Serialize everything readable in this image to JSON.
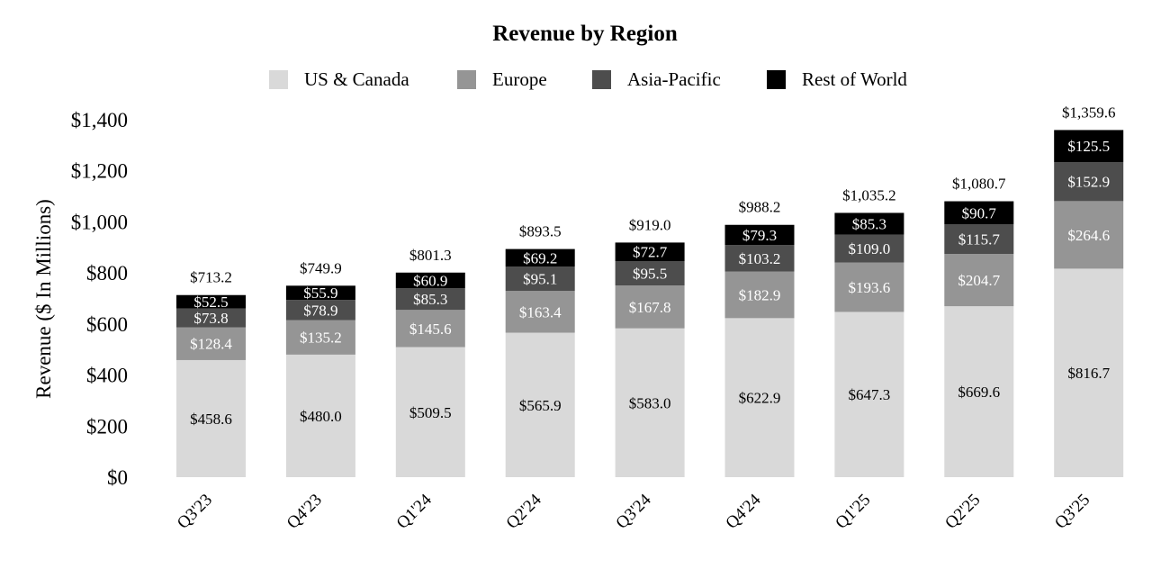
{
  "chart_data": {
    "type": "bar",
    "stacked": true,
    "title": "Revenue by Region",
    "ylabel": "Revenue ($ In Millions)",
    "xlabel": "",
    "categories": [
      "Q3'23",
      "Q4'23",
      "Q1'24",
      "Q2'24",
      "Q3'24",
      "Q4'24",
      "Q1'25",
      "Q2'25",
      "Q3'25"
    ],
    "series": [
      {
        "name": "US & Canada",
        "color": "#d9d9d9",
        "label_color": "#000000",
        "values": [
          458.6,
          480.0,
          509.5,
          565.9,
          583.0,
          622.9,
          647.3,
          669.6,
          816.7
        ],
        "value_labels": [
          "$458.6",
          "$480.0",
          "$509.5",
          "$565.9",
          "$583.0",
          "$622.9",
          "$647.3",
          "$669.6",
          "$816.7"
        ]
      },
      {
        "name": "Europe",
        "color": "#959595",
        "label_color": "#ffffff",
        "values": [
          128.4,
          135.2,
          145.6,
          163.4,
          167.8,
          182.9,
          193.6,
          204.7,
          264.6
        ],
        "value_labels": [
          "$128.4",
          "$135.2",
          "$145.6",
          "$163.4",
          "$167.8",
          "$182.9",
          "$193.6",
          "$204.7",
          "$264.6"
        ]
      },
      {
        "name": "Asia-Pacific",
        "color": "#4d4d4d",
        "label_color": "#ffffff",
        "values": [
          73.8,
          78.9,
          85.3,
          95.1,
          95.5,
          103.2,
          109.0,
          115.7,
          152.9
        ],
        "value_labels": [
          "$73.8",
          "$78.9",
          "$85.3",
          "$95.1",
          "$95.5",
          "$103.2",
          "$109.0",
          "$115.7",
          "$152.9"
        ]
      },
      {
        "name": "Rest of World",
        "color": "#000000",
        "label_color": "#ffffff",
        "values": [
          52.5,
          55.9,
          60.9,
          69.2,
          72.7,
          79.3,
          85.3,
          90.7,
          125.5
        ],
        "value_labels": [
          "$52.5",
          "$55.9",
          "$60.9",
          "$69.2",
          "$72.7",
          "$79.3",
          "$85.3",
          "$90.7",
          "$125.5"
        ]
      }
    ],
    "totals": [
      713.2,
      749.9,
      801.3,
      893.5,
      919.0,
      988.2,
      1035.2,
      1080.7,
      1359.6
    ],
    "total_labels": [
      "$713.2",
      "$749.9",
      "$801.3",
      "$893.5",
      "$919.0",
      "$988.2",
      "$1,035.2",
      "$1,080.7",
      "$1,359.6"
    ],
    "ylim": [
      0,
      1400
    ],
    "yticks": [
      0,
      200,
      400,
      600,
      800,
      1000,
      1200,
      1400
    ],
    "ytick_labels": [
      "$0",
      "$200",
      "$400",
      "$600",
      "$800",
      "$1,000",
      "$1,200",
      "$1,400"
    ],
    "grid": false,
    "legend_position": "top-center"
  }
}
